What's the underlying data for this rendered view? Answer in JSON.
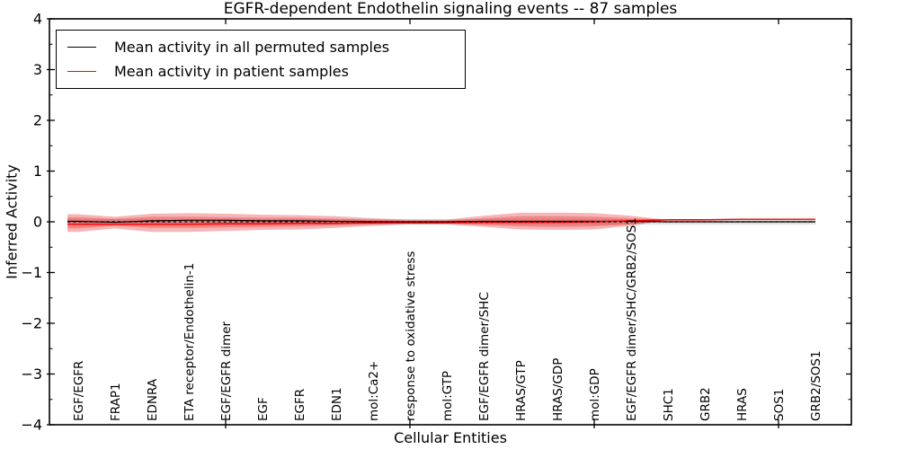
{
  "figure": {
    "background": "#ffffff"
  },
  "chart_data": {
    "type": "line",
    "title": "EGFR-dependent Endothelin signaling events -- 87 samples",
    "xlabel": "Cellular Entities",
    "ylabel": "Inferred Activity",
    "ylim": [
      -4,
      4
    ],
    "y_tick_values": [
      -4,
      -3,
      -2,
      -1,
      0,
      1,
      2,
      3,
      4
    ],
    "y_tick_labels": [
      "−4",
      "−3",
      "−2",
      "−1",
      "0",
      "1",
      "2",
      "3",
      "4"
    ],
    "y_minor_step": 0.5,
    "x_major_tick_values": [
      5,
      10,
      15,
      20
    ],
    "grid": false,
    "categories": [
      "EGF/EGFR",
      "FRAP1",
      "EDNRA",
      "ETA receptor/Endothelin-1",
      "EGF/EGFR dimer",
      "EGF",
      "EGFR",
      "EDN1",
      "mol:Ca2+",
      "response to oxidative stress",
      "mol:GTP",
      "EGF/EGFR dimer/SHC",
      "HRAS/GTP",
      "HRAS/GDP",
      "mol:GDP",
      "EGF/EGFR dimer/SHC/GRB2/SOS1",
      "SHC1",
      "GRB2",
      "HRAS",
      "SOS1",
      "GRB2/SOS1"
    ],
    "x_values": [
      1,
      2,
      3,
      4,
      5,
      6,
      7,
      8,
      9,
      10,
      11,
      12,
      13,
      14,
      15,
      16,
      17,
      18,
      19,
      20,
      21
    ],
    "series": [
      {
        "name": "Mean activity in all permuted samples",
        "color": "#000000",
        "style": "solid",
        "values": [
          0.01,
          -0.01,
          0.02,
          0.03,
          0.03,
          0.02,
          0.02,
          0.01,
          0.0,
          0.0,
          0.0,
          0.01,
          0.01,
          0.01,
          0.01,
          0.01,
          0.0,
          0.0,
          0.0,
          0.0,
          0.0
        ]
      },
      {
        "name": "Mean activity in patient samples",
        "color": "#ff0000",
        "style": "solid",
        "values": [
          -0.05,
          -0.05,
          -0.05,
          -0.05,
          -0.04,
          -0.04,
          -0.03,
          -0.03,
          -0.02,
          -0.02,
          -0.02,
          -0.01,
          -0.01,
          -0.01,
          0.0,
          0.02,
          0.04,
          0.04,
          0.05,
          0.05,
          0.05
        ]
      }
    ],
    "zero_line": {
      "color": "#000000",
      "style": "dashed",
      "value": 0
    },
    "bands": [
      {
        "name": "permuted-std-band",
        "color": "rgba(0,0,0,0.12)",
        "upper": [
          0.05,
          0.05,
          0.05,
          0.05,
          0.05,
          0.05,
          0.05,
          0.05,
          0.05,
          0.05,
          0.05,
          0.05,
          0.05,
          0.05,
          0.05,
          0.05,
          0.05,
          0.05,
          0.05,
          0.05,
          0.05
        ],
        "lower": [
          -0.055,
          -0.055,
          -0.055,
          -0.055,
          -0.055,
          -0.055,
          -0.055,
          -0.055,
          -0.055,
          -0.055,
          -0.055,
          -0.055,
          -0.055,
          -0.055,
          -0.055,
          -0.055,
          -0.055,
          -0.055,
          -0.055,
          -0.055,
          -0.055
        ]
      },
      {
        "name": "patient-outer-band",
        "color": "rgba(228,26,28,0.32)",
        "upper": [
          0.15,
          0.1,
          0.16,
          0.17,
          0.16,
          0.14,
          0.13,
          0.11,
          0.07,
          0.045,
          0.045,
          0.12,
          0.18,
          0.18,
          0.17,
          0.12,
          0.04,
          0.04,
          0.05,
          0.05,
          0.05
        ],
        "lower": [
          -0.2,
          -0.13,
          -0.2,
          -0.2,
          -0.18,
          -0.16,
          -0.15,
          -0.12,
          -0.08,
          -0.05,
          -0.05,
          -0.1,
          -0.15,
          -0.16,
          -0.15,
          -0.08,
          0.04,
          0.04,
          0.05,
          0.05,
          0.05
        ]
      },
      {
        "name": "patient-inner-band",
        "color": "rgba(228,26,28,0.30)",
        "upper": [
          0.09,
          0.06,
          0.1,
          0.1,
          0.09,
          0.08,
          0.08,
          0.06,
          0.04,
          0.02,
          0.02,
          0.07,
          0.11,
          0.11,
          0.1,
          0.07,
          0.04,
          0.04,
          0.05,
          0.05,
          0.05
        ],
        "lower": [
          -0.13,
          -0.08,
          -0.12,
          -0.12,
          -0.11,
          -0.1,
          -0.09,
          -0.07,
          -0.05,
          -0.03,
          -0.03,
          -0.06,
          -0.09,
          -0.1,
          -0.09,
          -0.05,
          0.04,
          0.04,
          0.05,
          0.05,
          0.05
        ]
      }
    ],
    "legend": {
      "position": "upper-left",
      "entries": [
        "Mean activity in all permuted samples",
        "Mean activity in patient samples"
      ]
    }
  }
}
